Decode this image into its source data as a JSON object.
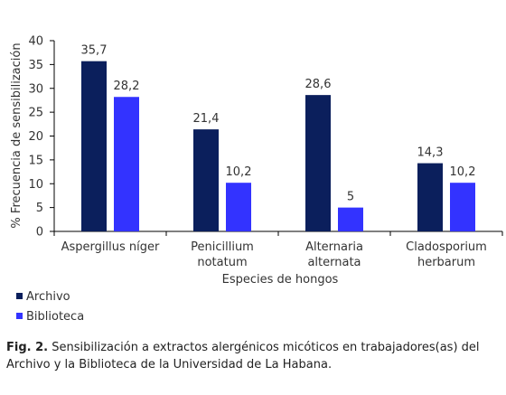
{
  "chart_data": {
    "type": "bar",
    "xlabel": "Especies de hongos",
    "ylabel": "% Frecuencia de sensibilización",
    "ylim": [
      0,
      40
    ],
    "yticks": [
      0,
      5,
      10,
      15,
      20,
      25,
      30,
      35,
      40
    ],
    "categories": [
      [
        "Aspergillus níger"
      ],
      [
        "Penicillium",
        "notatum"
      ],
      [
        "Alternaria",
        "alternata"
      ],
      [
        "Cladosporium",
        "herbarum"
      ]
    ],
    "series": [
      {
        "name": "Archivo",
        "color": "#0b1f5c",
        "values": [
          35.7,
          21.4,
          28.6,
          14.3
        ],
        "labels": [
          "35,7",
          "21,4",
          "28,6",
          "14,3"
        ]
      },
      {
        "name": "Biblioteca",
        "color": "#3333ff",
        "values": [
          28.2,
          10.2,
          5,
          10.2
        ],
        "labels": [
          "28,2",
          "10,2",
          "5",
          "10,2"
        ]
      }
    ],
    "legend_position": "bottom-left",
    "grid": false
  },
  "caption": {
    "label": "Fig. 2.",
    "text": " Sensibilización a extractos alergénicos micóticos en trabajadores(as) del Archivo y la Biblioteca de la Universidad de La Habana."
  }
}
